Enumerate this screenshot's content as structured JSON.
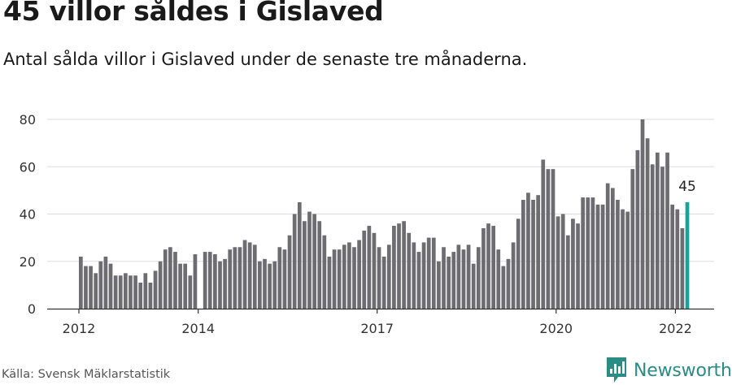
{
  "title": "45 villor såldes i Gislaved",
  "subtitle": "Antal sålda villor i Gislaved under de senaste tre månaderna.",
  "source": "Källa: Svensk Mäklarstatistik",
  "brand": "Newsworthy",
  "colors": {
    "bar": "#6d6c70",
    "highlight": "#1ca19a",
    "grid": "#dddddd",
    "brand": "#2a8c84"
  },
  "chart_data": {
    "type": "bar",
    "title": "45 villor såldes i Gislaved",
    "xlabel": "",
    "ylabel": "",
    "ylim": [
      0,
      80
    ],
    "yticks": [
      0,
      20,
      40,
      60,
      80
    ],
    "xtick_labels": [
      {
        "label": "2012",
        "index": 0
      },
      {
        "label": "2014",
        "index": 24
      },
      {
        "label": "2017",
        "index": 60
      },
      {
        "label": "2020",
        "index": 96
      },
      {
        "label": "2022",
        "index": 120
      }
    ],
    "start": "2012-01",
    "end": "2022-03",
    "series": [
      {
        "name": "Sålda villor",
        "values": [
          22,
          18,
          18,
          15,
          20,
          22,
          19,
          14,
          14,
          15,
          14,
          14,
          11,
          15,
          11,
          16,
          20,
          25,
          26,
          24,
          19,
          19,
          14,
          23,
          0,
          24,
          24,
          23,
          20,
          21,
          25,
          26,
          26,
          29,
          28,
          27,
          20,
          21,
          19,
          20,
          26,
          25,
          31,
          40,
          45,
          37,
          41,
          40,
          37,
          31,
          22,
          25,
          25,
          27,
          28,
          26,
          29,
          33,
          35,
          32,
          26,
          22,
          27,
          35,
          36,
          37,
          32,
          28,
          24,
          28,
          30,
          30,
          20,
          26,
          22,
          24,
          27,
          25,
          27,
          19,
          26,
          34,
          36,
          35,
          25,
          18,
          21,
          28,
          38,
          46,
          49,
          46,
          48,
          63,
          59,
          59,
          39,
          40,
          31,
          38,
          36,
          47,
          47,
          47,
          44,
          44,
          53,
          51,
          46,
          42,
          41,
          59,
          67,
          80,
          72,
          61,
          66,
          60,
          66,
          44,
          42,
          34,
          45
        ]
      }
    ],
    "highlight": {
      "index": 122,
      "value": 45,
      "label": "45"
    }
  }
}
